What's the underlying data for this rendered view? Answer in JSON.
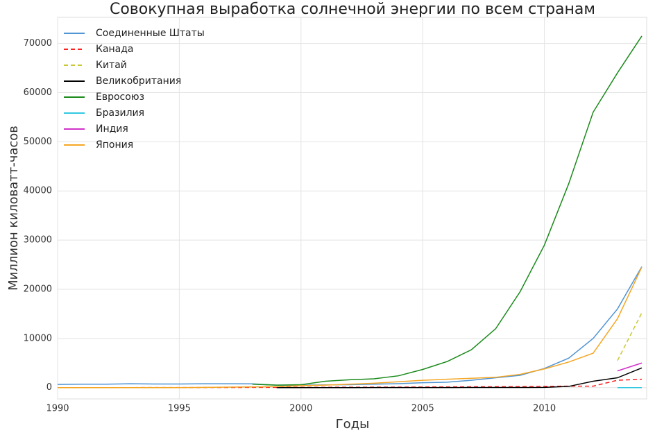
{
  "chart_data": {
    "type": "line",
    "title": "Совокупная выработка солнечной энергии по всем странам",
    "x_label": "Годы",
    "y_label": "Миллион киловатт-часов",
    "x": [
      1990,
      1991,
      1992,
      1993,
      1994,
      1995,
      1996,
      1997,
      1998,
      1999,
      2000,
      2001,
      2002,
      2003,
      2004,
      2005,
      2006,
      2007,
      2008,
      2009,
      2010,
      2011,
      2012,
      2013,
      2014
    ],
    "xlim": [
      1990,
      2014.2
    ],
    "xticks": [
      1990,
      1995,
      2000,
      2005,
      2010
    ],
    "ylim": [
      -2300,
      75300
    ],
    "yticks": [
      0,
      10000,
      20000,
      30000,
      40000,
      50000,
      60000,
      70000
    ],
    "grid": true,
    "legend": "upper-left",
    "series": [
      {
        "name": "Соединенные Штаты",
        "color": "#4f94d4",
        "style": "solid",
        "values": [
          650,
          700,
          700,
          780,
          730,
          740,
          780,
          780,
          760,
          500,
          500,
          550,
          600,
          700,
          800,
          1000,
          1100,
          1500,
          2000,
          2500,
          3900,
          6000,
          10000,
          16000,
          24600
        ]
      },
      {
        "name": "Канада",
        "color": "#ff2020",
        "style": "dashed",
        "values": [
          0,
          0,
          0,
          0,
          10,
          10,
          20,
          30,
          40,
          50,
          60,
          70,
          80,
          90,
          100,
          120,
          140,
          160,
          180,
          200,
          250,
          300,
          300,
          1500,
          1700
        ]
      },
      {
        "name": "Китай",
        "color": "#c8c832",
        "style": "dashed",
        "values": [
          null,
          null,
          null,
          null,
          null,
          null,
          null,
          null,
          null,
          null,
          null,
          null,
          null,
          null,
          null,
          null,
          null,
          null,
          null,
          null,
          null,
          null,
          null,
          5500,
          15200
        ]
      },
      {
        "name": "Великобритания",
        "color": "#000000",
        "style": "solid",
        "values": [
          null,
          null,
          null,
          null,
          null,
          null,
          null,
          null,
          null,
          0,
          0,
          0,
          0,
          10,
          10,
          10,
          10,
          20,
          20,
          20,
          40,
          250,
          1300,
          2000,
          4000
        ]
      },
      {
        "name": "Евросоюз",
        "color": "#1a8a1a",
        "style": "solid",
        "values": [
          null,
          null,
          null,
          null,
          null,
          null,
          null,
          null,
          700,
          500,
          600,
          1300,
          1600,
          1800,
          2400,
          3700,
          5300,
          7700,
          12000,
          19500,
          29000,
          41500,
          56000,
          64000,
          71500
        ]
      },
      {
        "name": "Бразилия",
        "color": "#30c8e0",
        "style": "solid",
        "values": [
          null,
          null,
          null,
          null,
          null,
          null,
          null,
          null,
          null,
          null,
          null,
          null,
          null,
          null,
          null,
          null,
          null,
          null,
          null,
          null,
          null,
          null,
          null,
          0,
          0
        ]
      },
      {
        "name": "Индия",
        "color": "#d030c8",
        "style": "solid",
        "values": [
          null,
          null,
          null,
          null,
          null,
          null,
          null,
          null,
          null,
          null,
          null,
          null,
          null,
          null,
          null,
          null,
          null,
          null,
          null,
          null,
          null,
          null,
          null,
          3400,
          5000
        ]
      },
      {
        "name": "Япония",
        "color": "#f5a623",
        "style": "solid",
        "values": [
          0,
          0,
          0,
          0,
          0,
          0,
          50,
          100,
          150,
          200,
          400,
          500,
          700,
          900,
          1200,
          1500,
          1700,
          1900,
          2100,
          2700,
          3800,
          5200,
          7000,
          14000,
          24500
        ]
      }
    ]
  }
}
